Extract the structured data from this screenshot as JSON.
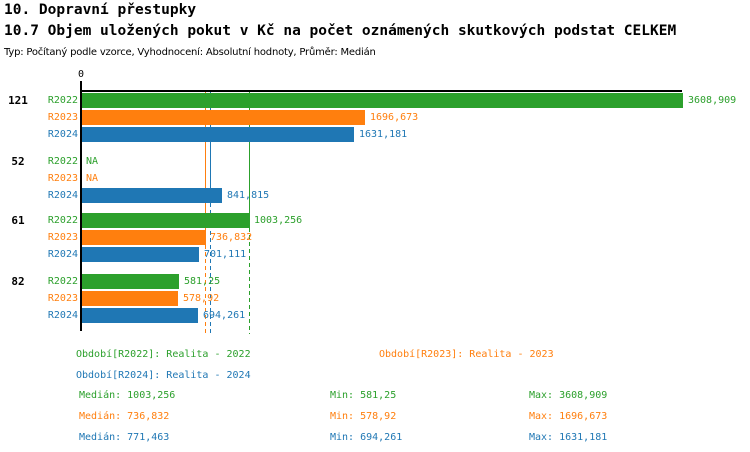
{
  "header": {
    "title": "10. Dopravní přestupky",
    "subtitle": "10.7 Objem uložených pokut v Kč na počet oznámených skutkových podstat CELKEM",
    "meta": "Typ: Počítaný podle vzorce, Vyhodnocení: Absolutní hodnoty, Průměr: Medián"
  },
  "colors": {
    "axis": "#000000",
    "background": "#ffffff",
    "series": {
      "R2022": "#2ca02c",
      "R2023": "#ff7f0e",
      "R2024": "#1f77b4"
    }
  },
  "chart_data": {
    "type": "bar",
    "orientation": "horizontal",
    "title": "10.7 Objem uložených pokut v Kč na počet oznámených skutkových podstat CELKEM",
    "categories": [
      "121",
      "52",
      "61",
      "82"
    ],
    "series": [
      {
        "name": "R2022",
        "color": "#2ca02c",
        "values": [
          3608.909,
          null,
          1003.256,
          581.25
        ],
        "displays": [
          "3608,909",
          "NA",
          "1003,256",
          "581,25"
        ],
        "median": 1003.256
      },
      {
        "name": "R2023",
        "color": "#ff7f0e",
        "values": [
          1696.673,
          null,
          736.832,
          578.92
        ],
        "displays": [
          "1696,673",
          "NA",
          "736,832",
          "578,92"
        ],
        "median": 736.832
      },
      {
        "name": "R2024",
        "color": "#1f77b4",
        "values": [
          1631.181,
          841.815,
          701.111,
          694.261
        ],
        "displays": [
          "1631,181",
          "841,815",
          "701,111",
          "694,261"
        ],
        "median": 771.463
      }
    ],
    "axis_zero_label": "0",
    "xlim": [
      0,
      3608.909
    ],
    "grid": false,
    "legend_position": "bottom",
    "median_lines": true
  },
  "legend": [
    {
      "series": "R2022",
      "label": "Období[R2022]: Realita - 2022"
    },
    {
      "series": "R2023",
      "label": "Období[R2023]: Realita - 2023"
    },
    {
      "series": "R2024",
      "label": "Období[R2024]: Realita - 2024"
    }
  ],
  "stats": {
    "rows": [
      {
        "series": "R2022",
        "median": "Medián: 1003,256",
        "min": "Min: 581,25",
        "max": "Max: 3608,909"
      },
      {
        "series": "R2023",
        "median": "Medián: 736,832",
        "min": "Min: 578,92",
        "max": "Max: 1696,673"
      },
      {
        "series": "R2024",
        "median": "Medián: 771,463",
        "min": "Min: 694,261",
        "max": "Max: 1631,181"
      }
    ]
  }
}
